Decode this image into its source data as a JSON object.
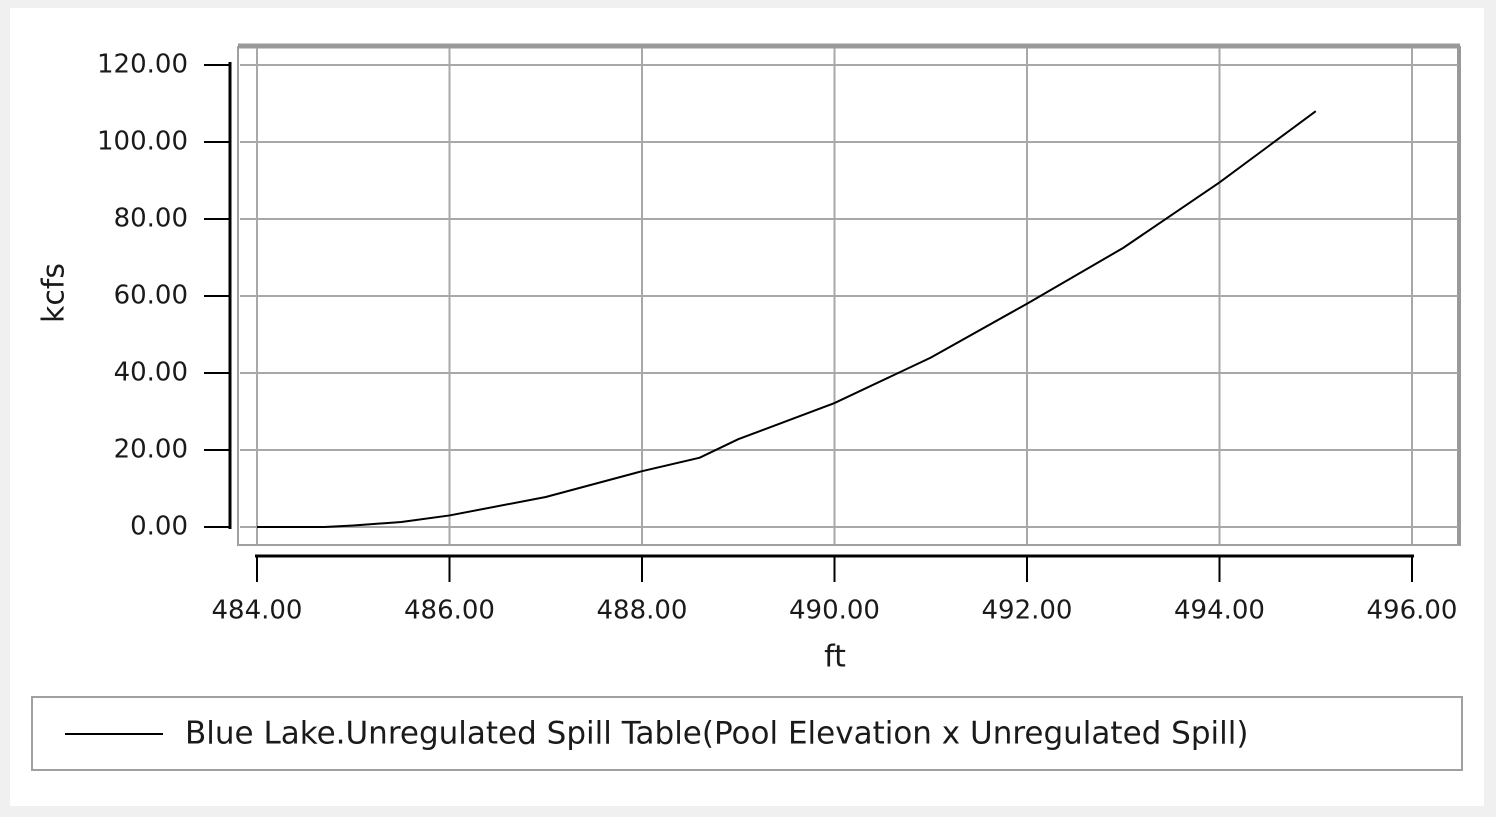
{
  "chart_data": {
    "type": "line",
    "x_label": "ft",
    "y_label": "kcfs",
    "x": [
      484,
      484.7,
      485,
      485.5,
      486,
      487,
      488,
      488.6,
      489,
      490,
      491,
      492,
      493,
      494,
      495
    ],
    "series": [
      {
        "name": "Blue Lake.Unregulated Spill Table(Pool Elevation x Unregulated Spill)",
        "color": "#000000",
        "values": [
          0,
          0,
          0.4,
          1.3,
          3,
          7.8,
          14.5,
          18,
          22.8,
          32.2,
          44,
          58,
          72.5,
          89.5,
          108
        ]
      }
    ],
    "xlim": [
      484,
      496
    ],
    "ylim": [
      0,
      120
    ],
    "xticks": [
      {
        "value": 484,
        "label": "484.00"
      },
      {
        "value": 486,
        "label": "486.00"
      },
      {
        "value": 488,
        "label": "488.00"
      },
      {
        "value": 490,
        "label": "490.00"
      },
      {
        "value": 492,
        "label": "492.00"
      },
      {
        "value": 494,
        "label": "494.00"
      },
      {
        "value": 496,
        "label": "496.00"
      }
    ],
    "yticks": [
      {
        "value": 0,
        "label": "0.00"
      },
      {
        "value": 20,
        "label": "20.00"
      },
      {
        "value": 40,
        "label": "40.00"
      },
      {
        "value": 60,
        "label": "60.00"
      },
      {
        "value": 80,
        "label": "80.00"
      },
      {
        "value": 100,
        "label": "100.00"
      },
      {
        "value": 120,
        "label": "120.00"
      }
    ],
    "grid": true
  }
}
